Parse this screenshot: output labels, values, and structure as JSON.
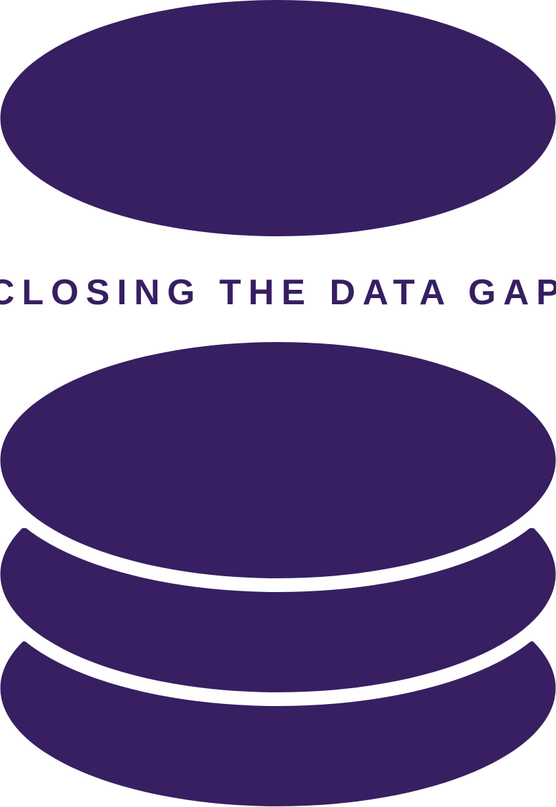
{
  "brand": {
    "tagline": "CLOSING THE DATA GAP",
    "color": "#371F62",
    "background": "#FFFFFF"
  },
  "icons": {
    "main": "database-stack-icon"
  }
}
